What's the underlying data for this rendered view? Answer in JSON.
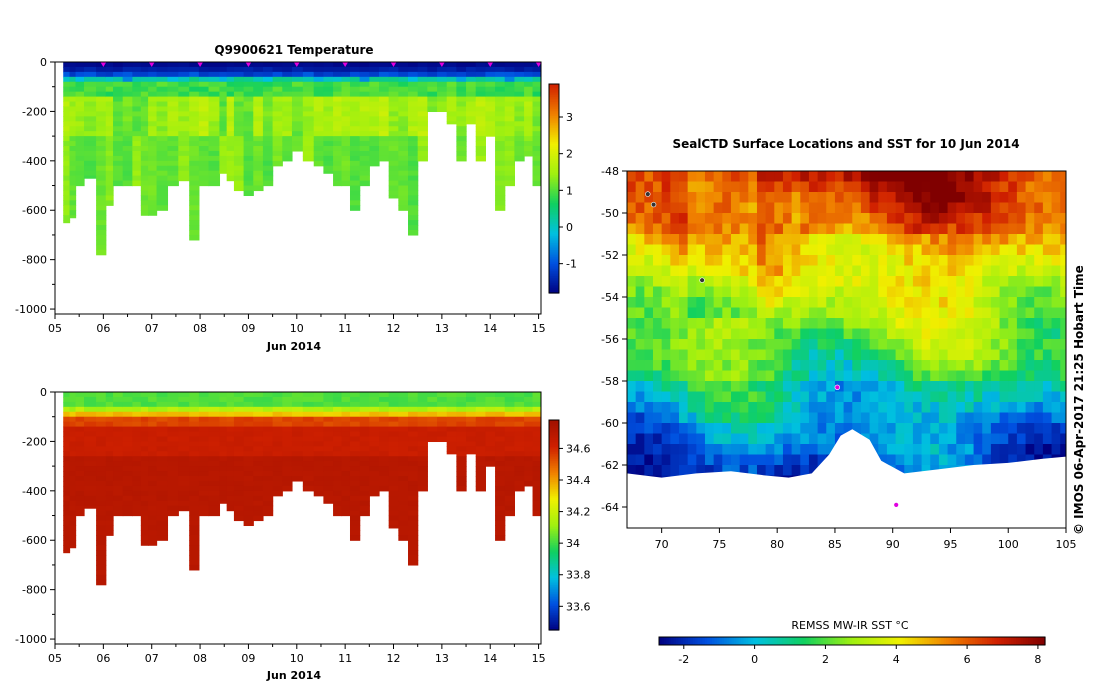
{
  "chart_data": [
    {
      "id": "temperature",
      "type": "heatmap",
      "title": "Q9900621  Temperature",
      "xlabel": "Jun 2014",
      "xlim": [
        5.0,
        15.05
      ],
      "xticks": [
        "05",
        "06",
        "07",
        "08",
        "09",
        "10",
        "11",
        "12",
        "13",
        "14",
        "15"
      ],
      "ylim": [
        -1020,
        0
      ],
      "yticks": [
        0,
        -200,
        -400,
        -600,
        -800,
        -1000
      ],
      "colorbar": {
        "range": [
          -1.8,
          3.9
        ],
        "ticks": [
          "-1",
          "0",
          "1",
          "2",
          "3"
        ],
        "tick_values": [
          -1,
          0,
          1,
          2,
          3
        ],
        "colors": [
          "#000080",
          "#0050e0",
          "#00c0e0",
          "#10d060",
          "#a0f010",
          "#f0f000",
          "#f08000",
          "#d02000"
        ]
      },
      "profile_days": [
        5.25,
        5.35,
        5.5,
        5.7,
        6.0,
        6.1,
        6.3,
        6.5,
        6.7,
        6.85,
        7.0,
        7.2,
        7.45,
        7.65,
        7.9,
        8.05,
        8.3,
        8.5,
        8.6,
        8.8,
        9.0,
        9.2,
        9.4,
        9.6,
        9.8,
        10.0,
        10.25,
        10.45,
        10.65,
        10.85,
        11.0,
        11.2,
        11.4,
        11.6,
        11.8,
        12.0,
        12.2,
        12.4,
        12.6,
        12.8,
        13.0,
        13.2,
        13.4,
        13.6,
        13.8,
        14.0,
        14.2,
        14.4,
        14.6,
        14.8,
        14.95
      ],
      "profile_depths": [
        650,
        630,
        500,
        470,
        780,
        580,
        500,
        500,
        500,
        620,
        620,
        600,
        500,
        480,
        720,
        500,
        500,
        450,
        480,
        520,
        540,
        520,
        500,
        420,
        400,
        360,
        400,
        420,
        450,
        500,
        500,
        600,
        500,
        420,
        400,
        550,
        600,
        700,
        400,
        200,
        200,
        250,
        400,
        250,
        400,
        300,
        600,
        500,
        400,
        380,
        500
      ],
      "surface_markers_days": [
        6.0,
        7.0,
        8.0,
        9.0,
        10.0,
        11.0,
        12.0,
        13.0,
        14.0,
        15.0
      ]
    },
    {
      "id": "salinity",
      "type": "heatmap",
      "title": "",
      "xlabel": "Jun 2014",
      "xlim": [
        5.0,
        15.05
      ],
      "xticks": [
        "05",
        "06",
        "07",
        "08",
        "09",
        "10",
        "11",
        "12",
        "13",
        "14",
        "15"
      ],
      "ylim": [
        -1020,
        0
      ],
      "yticks": [
        0,
        -200,
        -400,
        -600,
        -800,
        -1000
      ],
      "colorbar": {
        "range": [
          33.45,
          34.78
        ],
        "ticks": [
          "33.6",
          "33.8",
          "34",
          "34.2",
          "34.4",
          "34.6"
        ],
        "tick_values": [
          33.6,
          33.8,
          34.0,
          34.2,
          34.4,
          34.6
        ],
        "colors": [
          "#000080",
          "#0050e0",
          "#00c0e0",
          "#10d060",
          "#a0f010",
          "#f0f000",
          "#f08000",
          "#d02000",
          "#a01000"
        ]
      }
    },
    {
      "id": "sst-map",
      "type": "heatmap",
      "title": "SealCTD Surface Locations and SST for 10 Jun 2014",
      "xlim": [
        67,
        105
      ],
      "ylim": [
        -65,
        -48
      ],
      "xticks": [
        "70",
        "75",
        "80",
        "85",
        "90",
        "95",
        "100",
        "105"
      ],
      "xtick_values": [
        70,
        75,
        80,
        85,
        90,
        95,
        100,
        105
      ],
      "yticks": [
        "-48",
        "-50",
        "-52",
        "-54",
        "-56",
        "-58",
        "-60",
        "-62",
        "-64"
      ],
      "ytick_values": [
        -48,
        -50,
        -52,
        -54,
        -56,
        -58,
        -60,
        -62,
        -64
      ],
      "colorbar": {
        "label": "REMSS MW-IR SST °C",
        "range": [
          -2.7,
          8.2
        ],
        "ticks": [
          "-2",
          "0",
          "2",
          "4",
          "6",
          "8"
        ],
        "tick_values": [
          -2,
          0,
          2,
          4,
          6,
          8
        ],
        "colors": [
          "#000080",
          "#0050e0",
          "#00c0e0",
          "#10d060",
          "#a0f010",
          "#f0f000",
          "#f08000",
          "#d02000",
          "#800000"
        ]
      },
      "credit": "© IMOS 06-Apr-2017 21:25 Hobart Time",
      "ice_edge_lat_by_lon": [
        [
          67,
          -62.4
        ],
        [
          70,
          -62.6
        ],
        [
          73,
          -62.4
        ],
        [
          76,
          -62.3
        ],
        [
          79,
          -62.5
        ],
        [
          81,
          -62.6
        ],
        [
          83,
          -62.4
        ],
        [
          84.5,
          -61.5
        ],
        [
          85.5,
          -60.6
        ],
        [
          86.5,
          -60.3
        ],
        [
          88,
          -60.8
        ],
        [
          89,
          -61.8
        ],
        [
          91,
          -62.4
        ],
        [
          94,
          -62.2
        ],
        [
          97,
          -62.0
        ],
        [
          100,
          -61.9
        ],
        [
          103,
          -61.7
        ],
        [
          105,
          -61.6
        ]
      ],
      "seal_locations": [
        [
          68.8,
          -49.1
        ],
        [
          69.3,
          -49.6
        ],
        [
          73.5,
          -53.2
        ],
        [
          85.2,
          -58.3
        ],
        [
          90.3,
          -63.9
        ]
      ]
    }
  ]
}
